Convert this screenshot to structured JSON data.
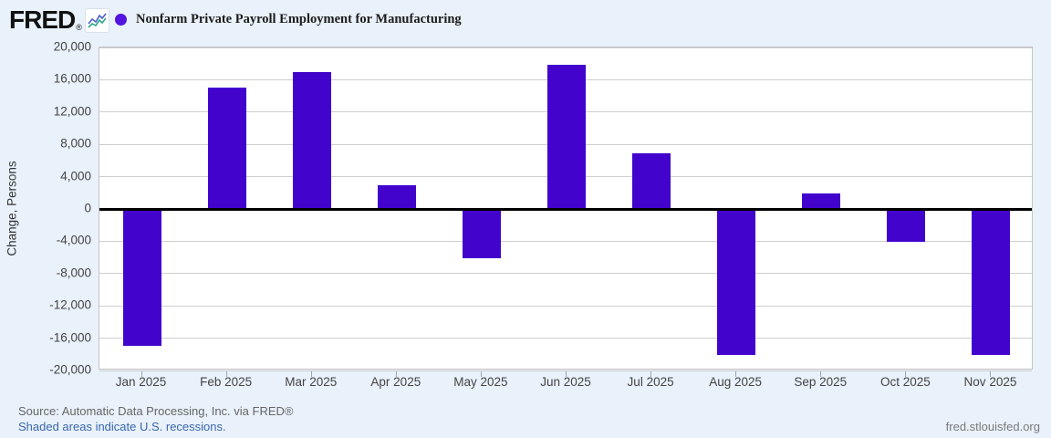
{
  "header": {
    "logo_text": "FRED",
    "registered_mark": "®",
    "series_title": "Nonfarm Private Payroll Employment for Manufacturing"
  },
  "chart_data": {
    "type": "bar",
    "title": "Nonfarm Private Payroll Employment for Manufacturing",
    "xlabel": "",
    "ylabel": "Change, Persons",
    "ylim": [
      -20000,
      20000
    ],
    "y_ticks": [
      20000,
      16000,
      12000,
      8000,
      4000,
      0,
      -4000,
      -8000,
      -12000,
      -16000,
      -20000
    ],
    "grid": true,
    "legend_position": "top-left",
    "bar_color": "#4204cd",
    "legend_dot_color": "#5314e0",
    "categories": [
      "Jan 2025",
      "Feb 2025",
      "Mar 2025",
      "Apr 2025",
      "May 2025",
      "Jun 2025",
      "Jul 2025",
      "Aug 2025",
      "Sep 2025",
      "Oct 2025",
      "Nov 2025"
    ],
    "values": [
      -17000,
      15000,
      16900,
      2900,
      -6100,
      17900,
      6900,
      -18100,
      1900,
      -4100,
      -18100
    ]
  },
  "footer": {
    "source_line": "Source: Automatic Data Processing, Inc. via FRED®",
    "recession_note": "Shaded areas indicate U.S. recessions.",
    "site_link": "fred.stlouisfed.org"
  }
}
